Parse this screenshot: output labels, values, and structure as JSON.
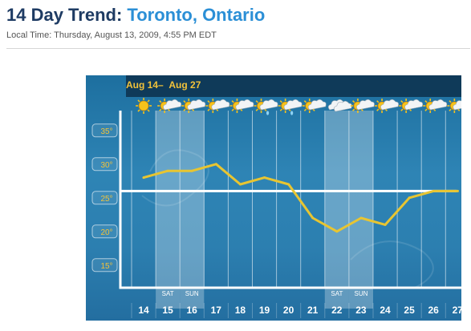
{
  "page": {
    "title_prefix": "14 Day Trend: ",
    "title_location": "Toronto, Ontario",
    "local_time": "Local Time: Thursday, August 13, 2009, 4:55 PM EDT"
  },
  "widget": {
    "date_range_start": "Aug 14–",
    "date_range_end": "Aug 27",
    "colors": {
      "background": "#2c7fb0",
      "header": "#0f3a59",
      "accent": "#f1c23a",
      "line": "#e8c531",
      "normal_line": "#ffffff"
    },
    "days": [
      {
        "num": "14",
        "dow": "",
        "icon": "sun-icon"
      },
      {
        "num": "15",
        "dow": "SAT",
        "icon": "sun-cloud-icon"
      },
      {
        "num": "16",
        "dow": "SUN",
        "icon": "sun-cloud-icon"
      },
      {
        "num": "17",
        "dow": "",
        "icon": "sun-cloud-icon"
      },
      {
        "num": "18",
        "dow": "",
        "icon": "sun-cloud-icon"
      },
      {
        "num": "19",
        "dow": "",
        "icon": "sun-cloud-rain-icon"
      },
      {
        "num": "20",
        "dow": "",
        "icon": "sun-cloud-rain-icon"
      },
      {
        "num": "21",
        "dow": "",
        "icon": "sun-cloud-icon"
      },
      {
        "num": "22",
        "dow": "SAT",
        "icon": "cloud-icon"
      },
      {
        "num": "23",
        "dow": "SUN",
        "icon": "sun-cloud-icon"
      },
      {
        "num": "24",
        "dow": "",
        "icon": "sun-cloud-icon"
      },
      {
        "num": "25",
        "dow": "",
        "icon": "sun-cloud-icon"
      },
      {
        "num": "26",
        "dow": "",
        "icon": "sun-cloud-icon"
      },
      {
        "num": "27",
        "dow": "",
        "icon": "sun-cloud-icon"
      }
    ]
  },
  "chart_data": {
    "type": "line",
    "categories": [
      "14",
      "15",
      "16",
      "17",
      "18",
      "19",
      "20",
      "21",
      "22",
      "23",
      "24",
      "25",
      "26",
      "27"
    ],
    "series": [
      {
        "values": [
          28,
          29,
          29,
          30,
          27,
          28,
          27,
          22,
          20,
          22,
          21,
          25,
          26,
          26
        ]
      }
    ],
    "reference_value": 26,
    "y_ticks": [
      "35°",
      "30°",
      "25°",
      "20°",
      "15°"
    ],
    "y_tick_values": [
      35,
      30,
      25,
      20,
      15
    ],
    "ylim": [
      12,
      37
    ],
    "grid": true
  }
}
